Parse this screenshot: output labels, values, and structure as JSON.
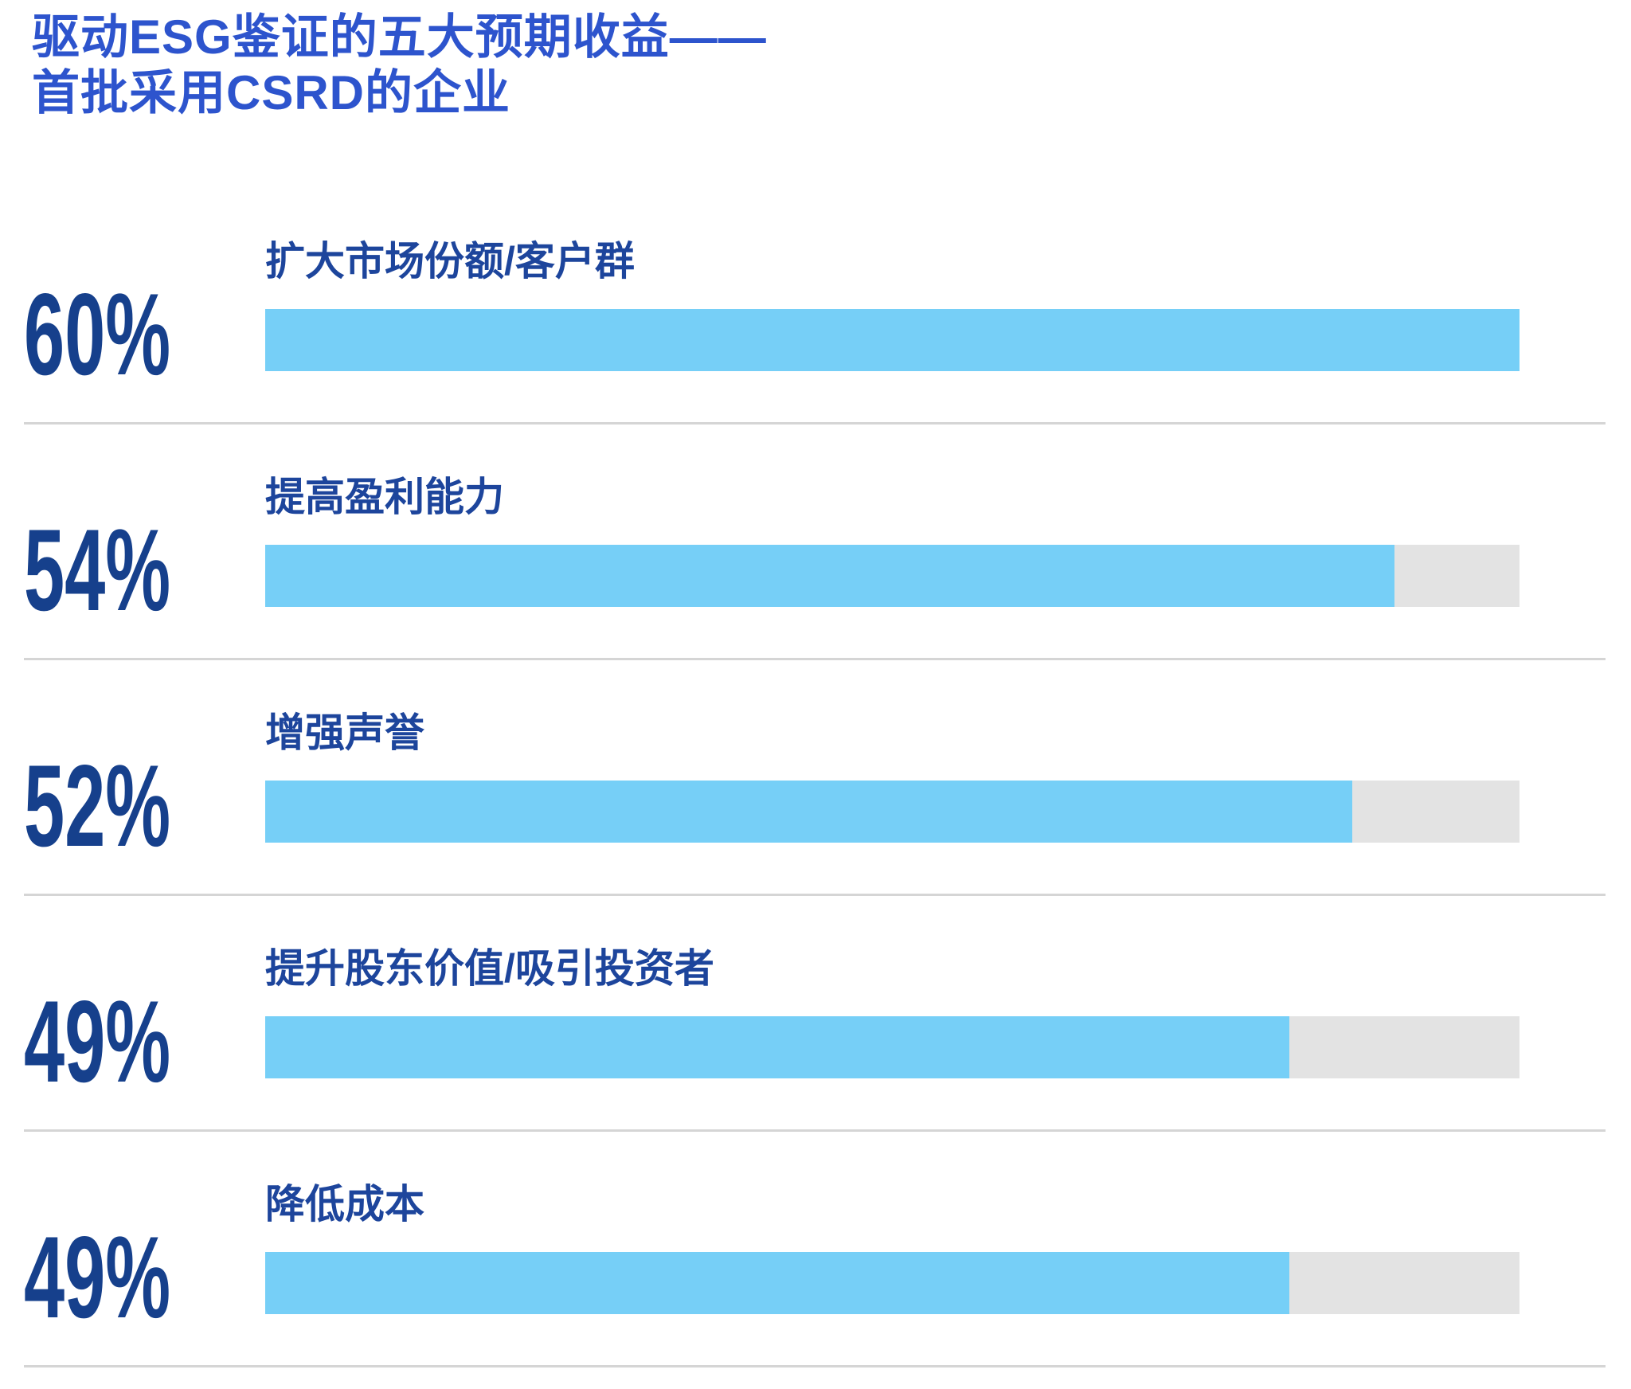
{
  "title": {
    "line1": "驱动ESG鉴证的五大预期收益——",
    "line2": "首批采用CSRD的企业"
  },
  "colors": {
    "title": "#2d54cd",
    "percent": "#16408c",
    "label": "#1d459c",
    "bar_fill": "#76cff7",
    "bar_track": "#e3e3e3",
    "divider": "#d5d5d5",
    "background": "#ffffff"
  },
  "chart_data": {
    "type": "bar",
    "orientation": "horizontal",
    "title": "驱动ESG鉴证的五大预期收益——首批采用CSRD的企业",
    "categories": [
      "扩大市场份额/客户群",
      "提高盈利能力",
      "增强声誉",
      "提升股东价值/吸引投资者",
      "降低成本"
    ],
    "values": [
      60,
      54,
      52,
      49,
      49
    ],
    "value_labels": [
      "60%",
      "54%",
      "52%",
      "49%",
      "49%"
    ],
    "unit": "%",
    "xlim": [
      0,
      60
    ],
    "bars_scaled_to_max": true,
    "grid": false,
    "legend": false,
    "row_dividers": true
  }
}
